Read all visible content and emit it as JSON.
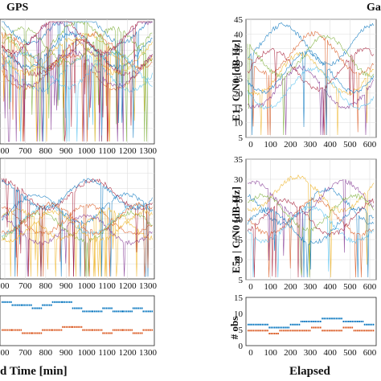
{
  "titles": {
    "left": "GPS",
    "right": "Ga"
  },
  "series_colors": [
    "#0072BD",
    "#D95319",
    "#EDB120",
    "#7E2F8E",
    "#77AC30",
    "#4DBEEE",
    "#A2142F"
  ],
  "obs_colors": {
    "first": "#0072BD",
    "second": "#D95319"
  },
  "chart_data": [
    {
      "id": "gps-top",
      "type": "scatter",
      "x_ticks": [
        "00",
        "700",
        "800",
        "900",
        "1000",
        "1100",
        "1200",
        "1300"
      ],
      "xlim": [
        600,
        1330
      ],
      "ylim": [
        5,
        50
      ],
      "y_ticks": [],
      "grid": true,
      "note": "dense multi-satellite C/N0 traces"
    },
    {
      "id": "gps-mid",
      "type": "scatter",
      "x_ticks": [
        "00",
        "700",
        "800",
        "900",
        "1000",
        "1100",
        "1200",
        "1300"
      ],
      "xlim": [
        600,
        1330
      ],
      "ylim": [
        5,
        50
      ],
      "y_ticks": [],
      "grid": true
    },
    {
      "id": "gps-obs",
      "type": "scatter",
      "x_ticks": [
        "00",
        "700",
        "800",
        "900",
        "1000",
        "1100",
        "1200",
        "1300"
      ],
      "xlabel": "d Time [min]",
      "xlim": [
        600,
        1330
      ],
      "ylim": [
        0,
        16
      ],
      "y_ticks": [],
      "series": [
        {
          "color_key": "first",
          "values": [
            14,
            13,
            13,
            12,
            13,
            14,
            14,
            12,
            11,
            11,
            12,
            11,
            11,
            12,
            11
          ]
        },
        {
          "color_key": "second",
          "values": [
            5,
            5,
            4,
            4,
            5,
            5,
            6,
            6,
            5,
            5,
            4,
            5,
            5,
            4,
            5
          ]
        }
      ]
    },
    {
      "id": "gal-e1",
      "type": "scatter",
      "ylabel": "E1 | C/N0 [dB-Hz]",
      "y_ticks": [
        "5",
        "10",
        "15",
        "20",
        "25",
        "30",
        "35",
        "40",
        "45"
      ],
      "ylim": [
        5,
        45
      ],
      "x_ticks": [
        "0",
        "100",
        "200",
        "300",
        "400",
        "500",
        "600"
      ],
      "xlim": [
        0,
        700
      ],
      "grid": true
    },
    {
      "id": "gal-e5a",
      "type": "scatter",
      "ylabel": "E5a | C/N0 [dB-Hz]",
      "y_ticks": [
        "5",
        "10",
        "15",
        "20",
        "25",
        "30",
        "35"
      ],
      "ylim": [
        5,
        35
      ],
      "x_ticks": [
        "0",
        "100",
        "200",
        "300",
        "400",
        "500",
        "600"
      ],
      "xlim": [
        0,
        700
      ],
      "grid": true
    },
    {
      "id": "gal-obs",
      "type": "scatter",
      "ylabel": "# obs",
      "y_ticks": [
        "0",
        "5",
        "10",
        "15"
      ],
      "ylim": [
        0,
        16
      ],
      "x_ticks": [
        "0",
        "100",
        "200",
        "300",
        "400",
        "500",
        "600"
      ],
      "xlabel": "Elapsed",
      "xlim": [
        0,
        700
      ],
      "series": [
        {
          "color_key": "first",
          "values": [
            7,
            7,
            6,
            6,
            7,
            8,
            8,
            9,
            9,
            8,
            8,
            7
          ]
        },
        {
          "color_key": "second",
          "values": [
            5,
            5,
            4,
            5,
            5,
            5,
            6,
            5,
            5,
            6,
            5,
            5
          ]
        }
      ]
    }
  ]
}
